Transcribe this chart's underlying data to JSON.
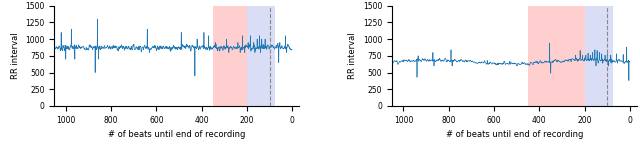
{
  "fig_width": 6.4,
  "fig_height": 1.45,
  "dpi": 100,
  "line_color": "#1f77b4",
  "line_width": 0.5,
  "pink_color": "#ffb0b0",
  "blue_color": "#c0c8f0",
  "pink_alpha": 0.6,
  "blue_alpha": 0.6,
  "dashed_color": "#888888",
  "ylim": [
    0,
    1500
  ],
  "yticks": [
    0,
    250,
    500,
    750,
    1000,
    1250,
    1500
  ],
  "xlim_left": 1050,
  "xlim_right": -30,
  "xticks": [
    1000,
    800,
    600,
    400,
    200,
    0
  ],
  "xlabel": "# of beats until end of recording",
  "ylabel": "RR interval",
  "left_pink_xmin": 350,
  "left_pink_xmax": 200,
  "left_blue_xmin": 200,
  "left_blue_xmax": 75,
  "left_dashed_x": 100,
  "right_pink_xmin": 450,
  "right_pink_xmax": 200,
  "right_blue_xmin": 200,
  "right_blue_xmax": 75,
  "right_dashed_x": 100
}
